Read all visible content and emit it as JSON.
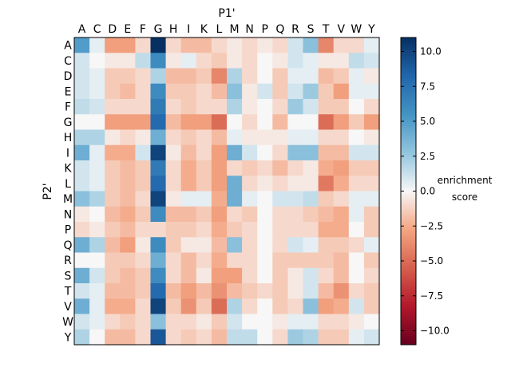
{
  "chart_data": {
    "type": "heatmap",
    "xlabel": "P1'",
    "ylabel": "P2'",
    "colorbar_label": [
      "enrichment",
      "score"
    ],
    "x_categories": [
      "A",
      "C",
      "D",
      "E",
      "F",
      "G",
      "H",
      "I",
      "K",
      "L",
      "M",
      "N",
      "P",
      "Q",
      "R",
      "S",
      "T",
      "V",
      "W",
      "Y"
    ],
    "y_categories": [
      "A",
      "C",
      "D",
      "E",
      "F",
      "G",
      "H",
      "I",
      "K",
      "L",
      "M",
      "N",
      "P",
      "Q",
      "R",
      "S",
      "T",
      "V",
      "W",
      "Y"
    ],
    "vmin": -11,
    "vmax": 11,
    "colorbar_ticks": [
      "10.0",
      "7.5",
      "5.0",
      "2.5",
      "0.0",
      "−2.5",
      "−5.0",
      "−7.5",
      "−10.0"
    ],
    "colorscale": "RdBu",
    "values": [
      [
        5,
        0.5,
        -3,
        -3,
        -1,
        11,
        -1,
        -2,
        -2,
        -1,
        -0.5,
        -1,
        -0.5,
        -1,
        1,
        3,
        -4,
        -1,
        -1,
        0.5
      ],
      [
        1,
        0,
        -0.5,
        -0.5,
        1.5,
        6,
        -0.5,
        0.5,
        -1,
        -1.5,
        -0.5,
        -1,
        0,
        -0.5,
        1,
        0.5,
        -0.5,
        -0.5,
        1.5,
        1
      ],
      [
        1,
        0.5,
        -1.5,
        -1.5,
        -1,
        2,
        -2,
        -2,
        -1.5,
        -4,
        2,
        -1,
        0,
        -1.5,
        0.5,
        0.5,
        -2,
        -1.5,
        0.5,
        -0.5
      ],
      [
        1,
        0.5,
        -1.5,
        -2,
        -1,
        6,
        -1.5,
        -1.5,
        -1,
        -2,
        3,
        -0.5,
        1,
        -1.5,
        1,
        2.5,
        -1.5,
        -3,
        0.5,
        0.5
      ],
      [
        1.5,
        1,
        -1,
        -1,
        -1,
        7,
        -1,
        -1.5,
        -1,
        -1,
        2,
        -0.5,
        0,
        -1,
        2.5,
        1,
        -1.5,
        -1.5,
        0,
        -1
      ],
      [
        0,
        0,
        -3,
        -3,
        -3,
        8,
        -2,
        -3,
        -3,
        -5,
        0,
        -1,
        0,
        -2,
        0,
        0,
        -5,
        -3,
        -1.5,
        -3
      ],
      [
        2,
        2,
        -0.5,
        -1,
        -0.5,
        4,
        -1,
        -1.5,
        -1,
        -2,
        0.5,
        -0.5,
        -0.5,
        -0.5,
        0.5,
        0.5,
        -1,
        -1,
        0,
        -0.5
      ],
      [
        4,
        0.5,
        -2.5,
        -2.5,
        1,
        10,
        -0.5,
        -2,
        -1,
        -3,
        4,
        1,
        0,
        -1,
        3,
        3,
        -2,
        -2,
        1,
        1
      ],
      [
        1,
        0.5,
        -1.5,
        -2,
        -1.5,
        7,
        -1,
        -2.5,
        -1.5,
        -3,
        -1,
        -1.5,
        -1,
        -2,
        -1,
        -0.5,
        -2.5,
        -3,
        -1.5,
        -1.5
      ],
      [
        1,
        0.5,
        -1.5,
        -2,
        -1.5,
        8,
        -1,
        -2.5,
        -1.5,
        -3,
        4,
        -1,
        -0.5,
        -1,
        -0.5,
        -0.5,
        -4.5,
        -2.5,
        -1,
        -1
      ],
      [
        3,
        2,
        -1.5,
        -2,
        -1,
        10,
        -0.5,
        0.5,
        0.5,
        -2.5,
        4,
        0.5,
        0,
        1,
        1,
        1.5,
        -1.5,
        -1,
        0.5,
        0.5
      ],
      [
        -0.5,
        0,
        -2,
        -2.5,
        -1.5,
        6,
        -2,
        -2,
        -1.5,
        -3,
        -1,
        -1.5,
        0,
        -1,
        -1,
        -1.5,
        -2,
        -2.5,
        0.5,
        -1.5
      ],
      [
        -1,
        -0.5,
        -1.5,
        -2,
        -1,
        -1,
        -1.5,
        -1.5,
        -1,
        -2.5,
        -1.5,
        -1,
        0,
        -1,
        -1,
        -1,
        -2.5,
        -2.5,
        0,
        -1.5
      ],
      [
        4,
        2,
        -2,
        -3,
        -0.5,
        6,
        -1.5,
        -0.5,
        -0.5,
        -2,
        3,
        -1,
        0,
        -1,
        1,
        0.5,
        -1.5,
        -1.5,
        -1,
        0.5
      ],
      [
        0,
        0,
        -1.5,
        -1.5,
        -1,
        4,
        -1,
        -2,
        -1,
        -2.5,
        -1,
        -1,
        0,
        -1.5,
        -1.5,
        -1.5,
        -1.5,
        -2,
        0,
        -1.5
      ],
      [
        4,
        1,
        -1.5,
        -2,
        -1.5,
        6,
        -1,
        -2,
        -0.5,
        -3,
        -3,
        -1,
        0,
        -1.5,
        -0.5,
        1,
        -1,
        -2,
        0,
        -1
      ],
      [
        1,
        0.5,
        -2,
        -2,
        -1.5,
        8,
        -2,
        -3,
        -2,
        -3.5,
        -2,
        -1.5,
        -1,
        -1.5,
        -0.5,
        1,
        -2,
        -3.5,
        -1,
        -1.5
      ],
      [
        4,
        0.5,
        -2.5,
        -2.5,
        -1,
        10,
        -1.5,
        -3.5,
        -1.5,
        -5,
        2,
        -1,
        0,
        -1.5,
        -1,
        3,
        -3,
        -2.5,
        1,
        -1.5
      ],
      [
        1,
        0.5,
        -1,
        -1.5,
        -1,
        3,
        -1,
        -1,
        -0.5,
        -1.5,
        1,
        0,
        0,
        -0.5,
        0.5,
        0.5,
        -1,
        -1,
        -0.5,
        0
      ],
      [
        2,
        0,
        -2,
        -2,
        -1,
        9,
        -1,
        -1.5,
        -1,
        -2,
        1.5,
        1.5,
        0,
        -1,
        2.5,
        2,
        -1.5,
        -1.5,
        0.5,
        1
      ]
    ]
  }
}
